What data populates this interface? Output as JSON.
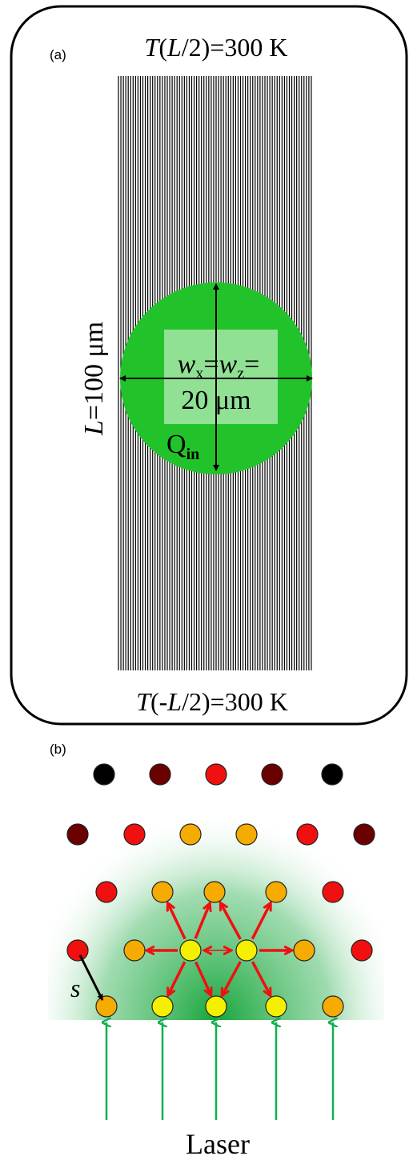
{
  "panel_a": {
    "label": "(a)",
    "top_label": [
      "T",
      "(",
      "L",
      "/2)=300 K"
    ],
    "bottom_label": [
      "T",
      "(-",
      "L",
      "/2)=300 K"
    ],
    "side_label": [
      "L",
      "=100 μm"
    ],
    "beam_label_line1": [
      "w",
      "x",
      "=",
      "w",
      "z",
      "="
    ],
    "beam_label_line2": "20 μm",
    "source_label": [
      "Q",
      "in"
    ]
  },
  "panel_b": {
    "label": "(b)",
    "spacing_label": "s",
    "laser_label": "Laser"
  }
}
